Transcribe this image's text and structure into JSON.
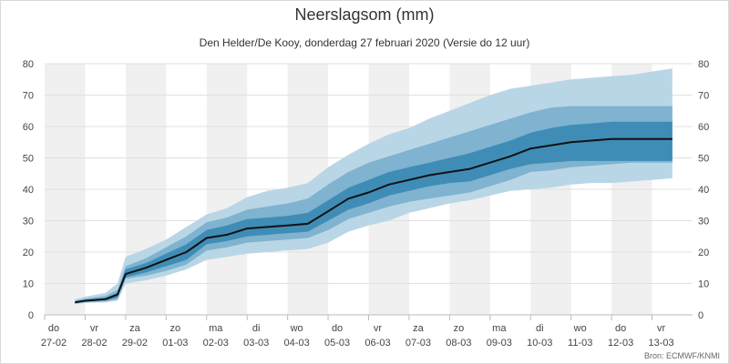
{
  "title": "Neerslagsom (mm)",
  "subtitle": "Den Helder/De Kooy, donderdag 27 februari 2020 (Versie do 12 uur)",
  "credits": "Bron: ECMWF/KNMI",
  "colors": {
    "outer_band": "#b9d6e6",
    "middle_band": "#7fb3cf",
    "inner_band": "#3f8db6",
    "median_line": "#111111",
    "shade_days": "#f0f0f0",
    "grid": "#e0e0e0"
  },
  "chart_data": {
    "type": "area",
    "title": "Neerslagsom (mm)",
    "subtitle": "Den Helder/De Kooy, donderdag 27 februari 2020 (Versie do 12 uur)",
    "ylim": [
      0,
      80
    ],
    "y_ticks": [
      "0",
      "10",
      "20",
      "30",
      "40",
      "50",
      "60",
      "70",
      "80"
    ],
    "y_axis_both_sides": true,
    "grid": true,
    "x_ticks": [
      {
        "day": "do",
        "date": "27-02"
      },
      {
        "day": "vr",
        "date": "28-02"
      },
      {
        "day": "za",
        "date": "29-02"
      },
      {
        "day": "zo",
        "date": "01-03"
      },
      {
        "day": "ma",
        "date": "02-03"
      },
      {
        "day": "di",
        "date": "03-03"
      },
      {
        "day": "wo",
        "date": "04-03"
      },
      {
        "day": "do",
        "date": "05-03"
      },
      {
        "day": "vr",
        "date": "06-03"
      },
      {
        "day": "za",
        "date": "07-03"
      },
      {
        "day": "zo",
        "date": "08-03"
      },
      {
        "day": "ma",
        "date": "09-03"
      },
      {
        "day": "di",
        "date": "10-03"
      },
      {
        "day": "wo",
        "date": "11-03"
      },
      {
        "day": "do",
        "date": "12-03"
      },
      {
        "day": "vr",
        "date": "13-03"
      }
    ],
    "shaded_days": [
      0,
      2,
      4,
      6,
      8,
      10,
      12,
      14
    ],
    "x_days": [
      0.75,
      1.0,
      1.5,
      1.8,
      2.0,
      2.5,
      3.0,
      3.5,
      4.0,
      4.5,
      5.0,
      5.5,
      6.0,
      6.5,
      7.0,
      7.5,
      8.0,
      8.5,
      9.0,
      9.5,
      10.0,
      10.5,
      11.0,
      11.5,
      12.0,
      12.5,
      13.0,
      13.5,
      14.0,
      14.5,
      15.0,
      15.5
    ],
    "series": [
      {
        "name": "median",
        "values": [
          4.0,
          4.5,
          5.0,
          6.5,
          13.0,
          15.0,
          17.5,
          20.0,
          24.5,
          25.5,
          27.5,
          28.0,
          28.5,
          29.0,
          33.0,
          37.0,
          39.0,
          41.5,
          43.0,
          44.5,
          45.5,
          46.5,
          48.5,
          50.5,
          53.0,
          54.0,
          55.0,
          55.5,
          56.0,
          56.0,
          56.0,
          56.0
        ]
      },
      {
        "name": "inner_low",
        "values": [
          3.8,
          4.2,
          4.6,
          5.5,
          12.0,
          13.5,
          15.5,
          17.5,
          22.5,
          23.5,
          25.0,
          25.5,
          26.0,
          26.5,
          30.0,
          33.5,
          35.5,
          38.0,
          39.5,
          41.0,
          42.0,
          42.5,
          44.5,
          46.5,
          48.0,
          48.5,
          49.0,
          49.0,
          49.0,
          49.0,
          49.0,
          49.0
        ]
      },
      {
        "name": "inner_high",
        "values": [
          4.2,
          4.8,
          5.4,
          7.0,
          14.5,
          16.5,
          19.5,
          22.5,
          27.0,
          28.5,
          30.5,
          31.0,
          31.5,
          32.5,
          36.5,
          40.5,
          43.0,
          45.5,
          47.0,
          48.5,
          50.0,
          51.5,
          53.5,
          55.5,
          58.0,
          59.5,
          60.5,
          61.0,
          61.5,
          61.5,
          61.5,
          61.5
        ]
      },
      {
        "name": "middle_low",
        "values": [
          3.6,
          4.0,
          4.3,
          5.0,
          11.5,
          12.5,
          14.0,
          16.0,
          20.5,
          21.5,
          23.0,
          23.5,
          24.0,
          24.5,
          27.0,
          30.5,
          32.5,
          34.5,
          36.0,
          37.0,
          38.0,
          39.0,
          41.0,
          43.0,
          45.5,
          46.0,
          47.0,
          47.5,
          48.0,
          48.5,
          48.5,
          48.5
        ]
      },
      {
        "name": "middle_high",
        "values": [
          4.5,
          5.2,
          6.0,
          8.0,
          15.5,
          18.0,
          21.5,
          25.0,
          29.5,
          31.0,
          33.5,
          34.5,
          35.5,
          37.0,
          41.5,
          45.5,
          48.5,
          50.5,
          52.5,
          54.5,
          56.5,
          58.5,
          60.5,
          62.5,
          64.5,
          66.0,
          66.5,
          66.5,
          66.5,
          66.5,
          66.5,
          66.5
        ]
      },
      {
        "name": "outer_low",
        "values": [
          3.4,
          3.8,
          4.0,
          4.5,
          10.0,
          11.0,
          12.5,
          14.5,
          17.5,
          18.5,
          19.5,
          20.0,
          20.5,
          21.0,
          23.0,
          26.5,
          28.5,
          30.0,
          32.5,
          34.0,
          35.5,
          36.5,
          38.0,
          39.5,
          40.0,
          40.5,
          41.5,
          42.0,
          42.0,
          42.5,
          43.0,
          43.5
        ]
      },
      {
        "name": "outer_high",
        "values": [
          5.0,
          5.8,
          7.0,
          10.0,
          18.5,
          21.0,
          24.0,
          28.0,
          32.0,
          34.0,
          37.5,
          39.5,
          40.5,
          42.0,
          47.0,
          51.0,
          54.5,
          57.5,
          59.5,
          62.5,
          65.0,
          67.5,
          70.0,
          72.0,
          73.0,
          74.0,
          75.0,
          75.5,
          76.0,
          76.5,
          77.5,
          78.5
        ]
      }
    ]
  }
}
